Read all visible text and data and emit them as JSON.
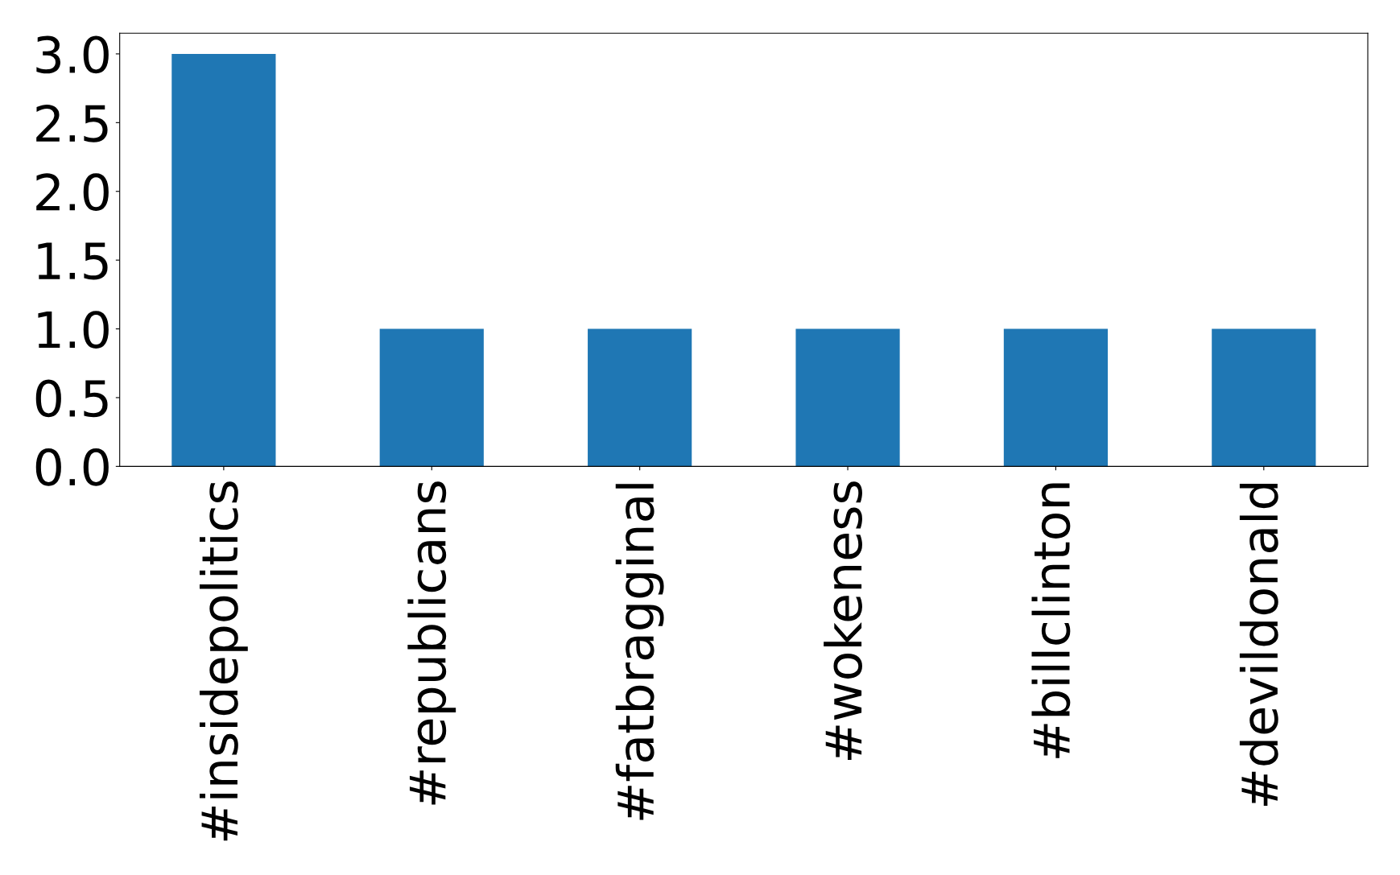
{
  "chart_data": {
    "type": "bar",
    "categories": [
      "#insidepolitics",
      "#republicans",
      "#fatbragginal",
      "#wokeness",
      "#billclinton",
      "#devildonald"
    ],
    "values": [
      3,
      1,
      1,
      1,
      1,
      1
    ],
    "color": "#1f77b4",
    "ylim": [
      0,
      3.15
    ],
    "yticks": [
      {
        "value": 0,
        "label": "0.0"
      },
      {
        "value": 0.5,
        "label": "0.5"
      },
      {
        "value": 1,
        "label": "1.0"
      },
      {
        "value": 1.5,
        "label": "1.5"
      },
      {
        "value": 2,
        "label": "2.0"
      },
      {
        "value": 2.5,
        "label": "2.5"
      },
      {
        "value": 3,
        "label": "3.0"
      }
    ],
    "grid": false,
    "legend": false
  }
}
